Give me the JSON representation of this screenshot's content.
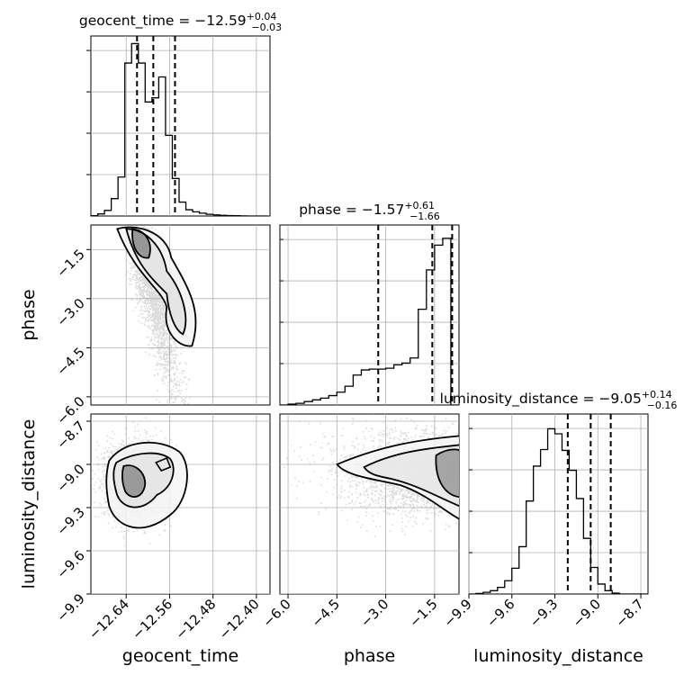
{
  "chart_data": {
    "type": "corner",
    "parameters": [
      "geocent_time",
      "phase",
      "luminosity_distance"
    ],
    "axis_labels": {
      "geocent_time": "geocent_time",
      "phase": "phase",
      "luminosity_distance": "luminosity_distance"
    },
    "grid": true,
    "ranges": {
      "geocent_time": [
        -12.705,
        -12.375
      ],
      "phase": [
        -6.25,
        -0.75
      ],
      "luminosity_distance": [
        -9.9,
        -8.65
      ]
    },
    "ticks": {
      "geocent_time": [
        {
          "v": -12.64,
          "label": "−12.64"
        },
        {
          "v": -12.56,
          "label": "−12.56"
        },
        {
          "v": -12.48,
          "label": "−12.48"
        },
        {
          "v": -12.4,
          "label": "−12.40"
        }
      ],
      "phase": [
        {
          "v": -6.0,
          "label": "−6.0"
        },
        {
          "v": -4.5,
          "label": "−4.5"
        },
        {
          "v": -3.0,
          "label": "−3.0"
        },
        {
          "v": -1.5,
          "label": "−1.5"
        }
      ],
      "luminosity_distance": [
        {
          "v": -9.9,
          "label": "−9.9"
        },
        {
          "v": -9.6,
          "label": "−9.6"
        },
        {
          "v": -9.3,
          "label": "−9.3"
        },
        {
          "v": -9.0,
          "label": "−9.0"
        },
        {
          "v": -8.7,
          "label": "−8.7"
        }
      ]
    },
    "titles": [
      {
        "param": "geocent_time",
        "name": "geocent_time",
        "median": "−12.59",
        "plus": "+0.04",
        "minus": "−0.03"
      },
      {
        "param": "phase",
        "name": "phase",
        "median": "−1.57",
        "plus": "+0.61",
        "minus": "−1.66"
      },
      {
        "param": "luminosity_distance",
        "name": "luminosity_distance",
        "median": "−9.05",
        "plus": "+0.14",
        "minus": "−0.16"
      }
    ],
    "quantiles": {
      "geocent_time": [
        -12.62,
        -12.59,
        -12.55
      ],
      "phase": [
        -3.23,
        -1.57,
        -0.96
      ],
      "luminosity_distance": [
        -9.21,
        -9.05,
        -8.91
      ]
    },
    "histograms": {
      "geocent_time": {
        "edges_start": -12.705,
        "bin_width": 0.0125,
        "ylim": [
          0,
          1230
        ],
        "counts": [
          2,
          15,
          40,
          125,
          280,
          1100,
          1240,
          1100,
          820,
          850,
          1000,
          580,
          270,
          100,
          45,
          30,
          20,
          12,
          8,
          5,
          3,
          2,
          1,
          0,
          0,
          0
        ]
      },
      "phase": {
        "edges_start": -6.25,
        "bin_width": 0.25,
        "ylim": [
          0,
          1000
        ],
        "counts": [
          0,
          5,
          10,
          20,
          30,
          40,
          55,
          75,
          110,
          175,
          205,
          210,
          210,
          215,
          235,
          245,
          275,
          560,
          790,
          935,
          975,
          0
        ]
      },
      "luminosity_distance": {
        "edges_start": -9.9,
        "bin_width": 0.05,
        "ylim": [
          0,
          1030
        ],
        "counts": [
          0,
          3,
          10,
          20,
          40,
          80,
          155,
          285,
          560,
          770,
          870,
          995,
          965,
          865,
          745,
          575,
          335,
          160,
          60,
          20,
          5,
          0,
          0,
          0,
          0
        ]
      }
    },
    "density_2d": [
      {
        "x": "geocent_time",
        "y": "phase",
        "mode": [
          -12.615,
          -1.2
        ],
        "trend": "negative",
        "points": 2500
      },
      {
        "x": "geocent_time",
        "y": "luminosity_distance",
        "mode": [
          -12.625,
          -9.1
        ],
        "trend": "none",
        "points": 2500
      },
      {
        "x": "phase",
        "y": "luminosity_distance",
        "mode": [
          -0.9,
          -9.05
        ],
        "trend": "wedge",
        "points": 2500
      }
    ]
  }
}
